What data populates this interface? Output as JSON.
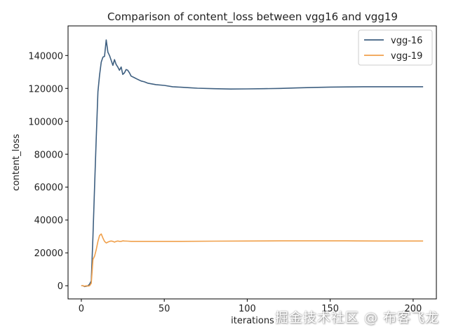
{
  "chart_data": {
    "type": "line",
    "title": "Comparison of content_loss between vgg16 and vgg19",
    "xlabel": "iterations",
    "ylabel": "content_loss",
    "xlim": [
      -8,
      214
    ],
    "ylim": [
      -8000,
      158000
    ],
    "xticks": [
      0,
      50,
      100,
      150,
      200
    ],
    "yticks": [
      0,
      20000,
      40000,
      60000,
      80000,
      100000,
      120000,
      140000
    ],
    "grid": false,
    "legend_position": "top-right",
    "series": [
      {
        "name": "vgg-16",
        "color": "#3e5f80",
        "x": [
          0,
          1,
          2,
          3,
          4,
          5,
          6,
          7,
          8,
          9,
          10,
          11,
          12,
          13,
          14,
          15,
          16,
          17,
          18,
          19,
          20,
          21,
          22,
          23,
          24,
          25,
          26,
          27,
          28,
          29,
          30,
          32,
          34,
          36,
          38,
          40,
          45,
          50,
          55,
          60,
          65,
          70,
          80,
          90,
          100,
          110,
          120,
          130,
          140,
          150,
          160,
          170,
          180,
          190,
          200,
          206
        ],
        "y": [
          0,
          0,
          -500,
          -300,
          0,
          1000,
          3000,
          30000,
          60000,
          90000,
          118000,
          128000,
          136000,
          139000,
          139500,
          149500,
          142000,
          140000,
          137000,
          134000,
          137500,
          134500,
          133000,
          131000,
          133000,
          128500,
          129500,
          131500,
          131000,
          129500,
          127500,
          126500,
          125500,
          124500,
          124000,
          123200,
          122300,
          121800,
          121000,
          120700,
          120400,
          120100,
          119800,
          119600,
          119700,
          119800,
          120000,
          120300,
          120600,
          120800,
          120900,
          121000,
          121000,
          121000,
          121000,
          121000
        ]
      },
      {
        "name": "vgg-19",
        "color": "#f0a04b",
        "x": [
          0,
          1,
          2,
          3,
          4,
          5,
          6,
          7,
          8,
          9,
          10,
          11,
          12,
          13,
          14,
          15,
          16,
          17,
          18,
          19,
          20,
          21,
          22,
          23,
          24,
          25,
          26,
          28,
          30,
          35,
          40,
          50,
          60,
          80,
          100,
          120,
          140,
          160,
          180,
          200,
          206
        ],
        "y": [
          0,
          0,
          -300,
          0,
          -200,
          0,
          1500,
          16000,
          18000,
          22000,
          27000,
          30500,
          31500,
          29000,
          27000,
          26000,
          26500,
          27000,
          27200,
          27000,
          26500,
          27000,
          27200,
          27000,
          27000,
          27300,
          27200,
          27100,
          27000,
          27000,
          27000,
          27000,
          27000,
          27100,
          27200,
          27300,
          27300,
          27300,
          27200,
          27200,
          27200
        ]
      }
    ]
  },
  "watermark": "掘金技术社区 @ 布客飞龙"
}
